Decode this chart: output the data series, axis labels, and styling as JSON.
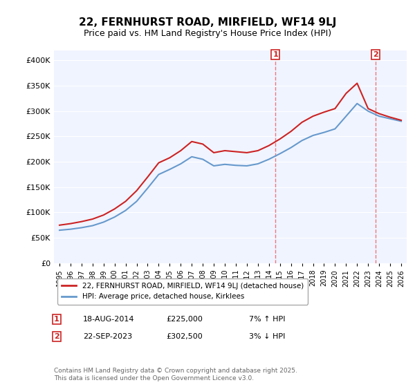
{
  "title": "22, FERNHURST ROAD, MIRFIELD, WF14 9LJ",
  "subtitle": "Price paid vs. HM Land Registry's House Price Index (HPI)",
  "ylabel": "",
  "ylim": [
    0,
    420000
  ],
  "yticks": [
    0,
    50000,
    100000,
    150000,
    200000,
    250000,
    300000,
    350000,
    400000
  ],
  "ytick_labels": [
    "£0",
    "£50K",
    "£100K",
    "£150K",
    "£200K",
    "£250K",
    "£300K",
    "£350K",
    "£400K"
  ],
  "hpi_color": "#6699cc",
  "price_color": "#cc2222",
  "marker1_date_idx": 19.6,
  "marker2_date_idx": 28.7,
  "marker1_label": "1",
  "marker2_label": "2",
  "legend_price_label": "22, FERNHURST ROAD, MIRFIELD, WF14 9LJ (detached house)",
  "legend_hpi_label": "HPI: Average price, detached house, Kirklees",
  "annotation1_date": "18-AUG-2014",
  "annotation1_price": "£225,000",
  "annotation1_hpi": "7% ↑ HPI",
  "annotation2_date": "22-SEP-2023",
  "annotation2_price": "£302,500",
  "annotation2_hpi": "3% ↓ HPI",
  "footer": "Contains HM Land Registry data © Crown copyright and database right 2025.\nThis data is licensed under the Open Government Licence v3.0.",
  "background_color": "#ffffff",
  "plot_bg_color": "#f0f4ff",
  "grid_color": "#ffffff",
  "years": [
    "1995",
    "1996",
    "1997",
    "1998",
    "1999",
    "2000",
    "2001",
    "2002",
    "2003",
    "2004",
    "2005",
    "2006",
    "2007",
    "2008",
    "2009",
    "2010",
    "2011",
    "2012",
    "2013",
    "2014",
    "2015",
    "2016",
    "2017",
    "2018",
    "2019",
    "2020",
    "2021",
    "2022",
    "2023",
    "2024",
    "2025",
    "2026"
  ],
  "hpi_values": [
    65000,
    67000,
    70000,
    74000,
    81000,
    91000,
    104000,
    122000,
    148000,
    175000,
    185000,
    196000,
    210000,
    205000,
    192000,
    195000,
    193000,
    192000,
    196000,
    205000,
    216000,
    228000,
    242000,
    252000,
    258000,
    265000,
    290000,
    315000,
    300000,
    290000,
    285000,
    280000
  ],
  "price_values": [
    75000,
    78000,
    82000,
    87000,
    95000,
    107000,
    122000,
    143000,
    170000,
    198000,
    208000,
    222000,
    240000,
    235000,
    218000,
    222000,
    220000,
    218000,
    222000,
    232000,
    245000,
    260000,
    278000,
    290000,
    298000,
    305000,
    335000,
    355000,
    305000,
    295000,
    288000,
    282000
  ]
}
